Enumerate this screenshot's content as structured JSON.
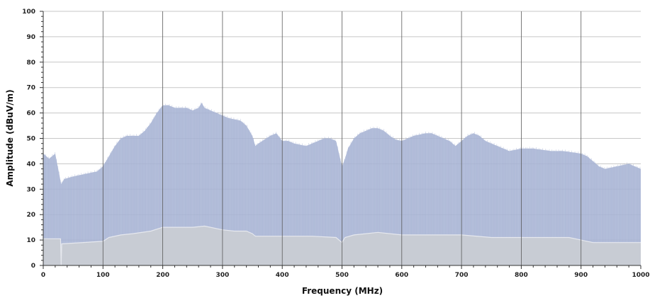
{
  "chart_data": {
    "type": "area",
    "title": "",
    "xlabel": "Frequency (MHz)",
    "ylabel": "Amplitude (dBuV/m)",
    "xlim": [
      0,
      1000
    ],
    "ylim": [
      0,
      100
    ],
    "x_ticks": [
      0,
      100,
      200,
      300,
      400,
      500,
      600,
      700,
      800,
      900,
      1000
    ],
    "y_ticks": [
      0,
      10,
      20,
      30,
      40,
      50,
      60,
      70,
      80,
      90,
      100
    ],
    "grid": true,
    "series": [
      {
        "color": "#aab6d6",
        "x": [
          0,
          10,
          20,
          30,
          35,
          50,
          70,
          90,
          100,
          110,
          120,
          130,
          140,
          150,
          160,
          170,
          180,
          190,
          200,
          210,
          220,
          230,
          240,
          250,
          260,
          265,
          270,
          280,
          290,
          300,
          310,
          320,
          330,
          340,
          350,
          355,
          360,
          380,
          390,
          400,
          410,
          420,
          440,
          460,
          470,
          480,
          490,
          500,
          505,
          510,
          520,
          530,
          540,
          550,
          560,
          570,
          580,
          590,
          600,
          620,
          640,
          650,
          660,
          680,
          690,
          700,
          710,
          720,
          730,
          740,
          760,
          780,
          800,
          820,
          850,
          870,
          900,
          910,
          920,
          930,
          940,
          960,
          980,
          1000
        ],
        "values": [
          44,
          42,
          44,
          32,
          34,
          35,
          36,
          37,
          39,
          43,
          47,
          50,
          51,
          51,
          51,
          53,
          56,
          60,
          63,
          63,
          62,
          62,
          62,
          61,
          62,
          64,
          62,
          61,
          60,
          59,
          58,
          57.5,
          57,
          55,
          51,
          47,
          48,
          51,
          52,
          49,
          49,
          48,
          47,
          49,
          50,
          50,
          49,
          39,
          42,
          46,
          50,
          52,
          53,
          54,
          54,
          53,
          51,
          49.5,
          49,
          51,
          52,
          52,
          51,
          49,
          47,
          49,
          51,
          52,
          51,
          49,
          47,
          45,
          46,
          46,
          45,
          45,
          44,
          43,
          41,
          39,
          38,
          39,
          40,
          38
        ]
      },
      {
        "color": "#c8ccd4",
        "x": [
          0,
          29,
          30,
          31,
          100,
          110,
          130,
          150,
          180,
          200,
          220,
          250,
          270,
          300,
          320,
          340,
          350,
          355,
          400,
          450,
          490,
          500,
          505,
          520,
          560,
          600,
          650,
          700,
          750,
          800,
          850,
          880,
          900,
          920,
          950,
          1000
        ],
        "values": [
          10.5,
          10.5,
          0,
          8.5,
          9.5,
          11,
          12,
          12.5,
          13.5,
          15,
          15,
          15,
          15.5,
          14,
          13.5,
          13.5,
          12.5,
          11.5,
          11.5,
          11.5,
          11,
          9,
          11,
          12,
          13,
          12,
          12,
          12,
          11,
          11,
          11,
          11,
          10,
          9,
          9,
          9
        ]
      }
    ]
  }
}
